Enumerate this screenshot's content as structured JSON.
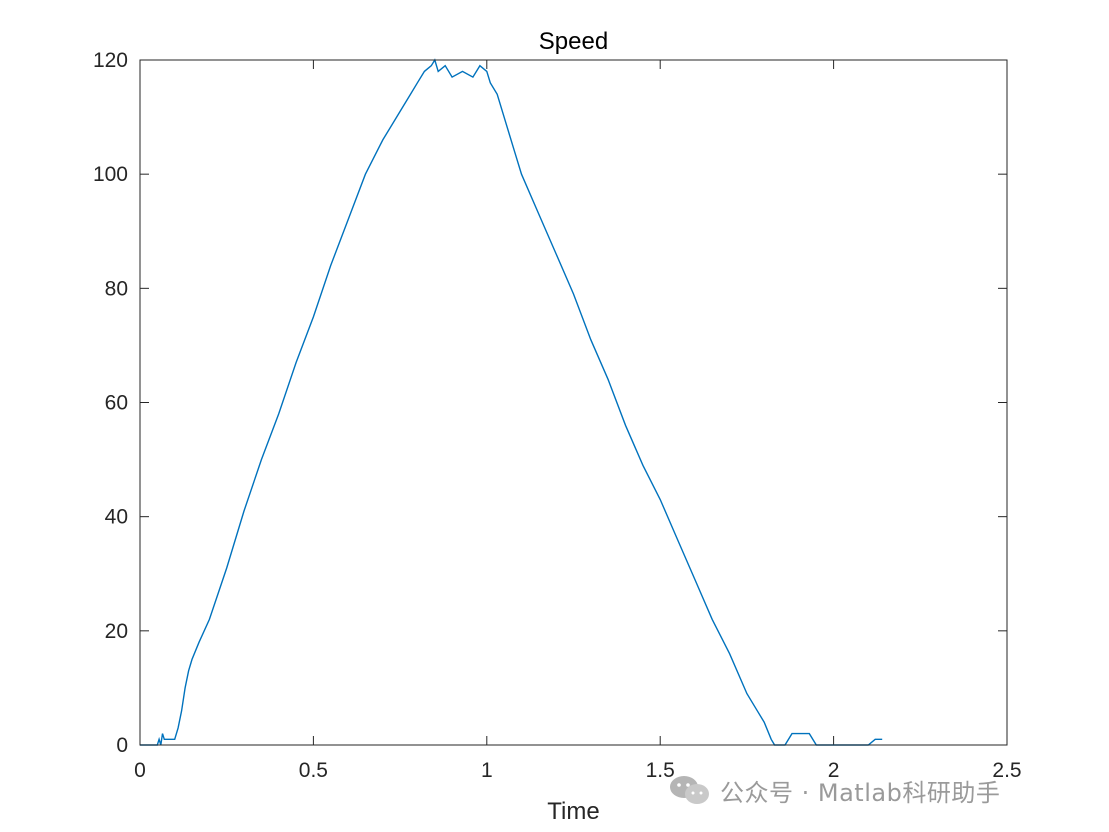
{
  "chart_data": {
    "type": "line",
    "title": "Speed",
    "xlabel": "Time",
    "ylabel": "",
    "xlim": [
      0,
      2.5
    ],
    "ylim": [
      0,
      120
    ],
    "xticks": [
      "0",
      "0.5",
      "1",
      "1.5",
      "2",
      "2.5"
    ],
    "yticks": [
      "0",
      "20",
      "40",
      "60",
      "80",
      "100",
      "120"
    ],
    "grid": false,
    "series": [
      {
        "color": "#0072BD",
        "points": [
          [
            0,
            0
          ],
          [
            0.04,
            0
          ],
          [
            0.05,
            0
          ],
          [
            0.055,
            1
          ],
          [
            0.06,
            0
          ],
          [
            0.065,
            2
          ],
          [
            0.07,
            1
          ],
          [
            0.1,
            1
          ],
          [
            0.11,
            3
          ],
          [
            0.12,
            6
          ],
          [
            0.13,
            10
          ],
          [
            0.14,
            13
          ],
          [
            0.15,
            15
          ],
          [
            0.17,
            18
          ],
          [
            0.2,
            22
          ],
          [
            0.25,
            31
          ],
          [
            0.3,
            41
          ],
          [
            0.35,
            50
          ],
          [
            0.4,
            58
          ],
          [
            0.45,
            67
          ],
          [
            0.5,
            75
          ],
          [
            0.55,
            84
          ],
          [
            0.6,
            92
          ],
          [
            0.65,
            100
          ],
          [
            0.7,
            106
          ],
          [
            0.75,
            111
          ],
          [
            0.78,
            114
          ],
          [
            0.8,
            116
          ],
          [
            0.82,
            118
          ],
          [
            0.84,
            119
          ],
          [
            0.85,
            120
          ],
          [
            0.86,
            118
          ],
          [
            0.88,
            119
          ],
          [
            0.9,
            117
          ],
          [
            0.93,
            118
          ],
          [
            0.96,
            117
          ],
          [
            0.98,
            119
          ],
          [
            1.0,
            118
          ],
          [
            1.01,
            116
          ],
          [
            1.03,
            114
          ],
          [
            1.05,
            110
          ],
          [
            1.08,
            104
          ],
          [
            1.1,
            100
          ],
          [
            1.15,
            93
          ],
          [
            1.2,
            86
          ],
          [
            1.25,
            79
          ],
          [
            1.3,
            71
          ],
          [
            1.35,
            64
          ],
          [
            1.4,
            56
          ],
          [
            1.45,
            49
          ],
          [
            1.5,
            43
          ],
          [
            1.55,
            36
          ],
          [
            1.6,
            29
          ],
          [
            1.65,
            22
          ],
          [
            1.7,
            16
          ],
          [
            1.75,
            9
          ],
          [
            1.78,
            6
          ],
          [
            1.8,
            4
          ],
          [
            1.82,
            1
          ],
          [
            1.83,
            0
          ],
          [
            1.86,
            0
          ],
          [
            1.88,
            2
          ],
          [
            1.9,
            2
          ],
          [
            1.93,
            2
          ],
          [
            1.95,
            0
          ],
          [
            2.0,
            0
          ],
          [
            2.05,
            0
          ],
          [
            2.1,
            0
          ],
          [
            2.12,
            1
          ],
          [
            2.14,
            1
          ]
        ]
      }
    ]
  },
  "watermark": {
    "text": "公众号 · Matlab科研助手",
    "icon": "wechat-icon"
  }
}
